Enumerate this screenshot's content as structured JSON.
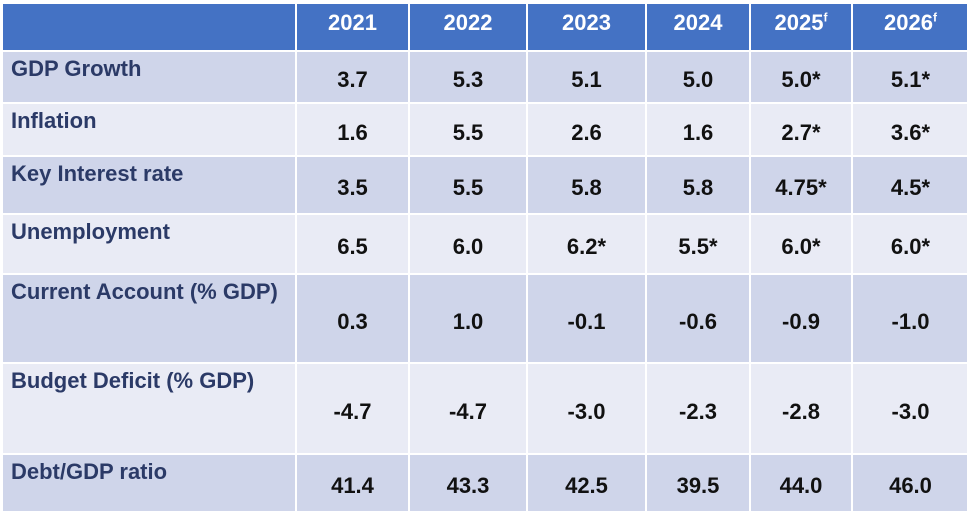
{
  "columns": [
    {
      "year": "2021",
      "sup": ""
    },
    {
      "year": "2022",
      "sup": ""
    },
    {
      "year": "2023",
      "sup": ""
    },
    {
      "year": "2024",
      "sup": ""
    },
    {
      "year": "2025",
      "sup": "f"
    },
    {
      "year": "2026",
      "sup": "f"
    }
  ],
  "rows": [
    {
      "label": "GDP Growth",
      "values": [
        "3.7",
        "5.3",
        "5.1",
        "5.0",
        "5.0*",
        "5.1*"
      ]
    },
    {
      "label": "Inflation",
      "values": [
        "1.6",
        "5.5",
        "2.6",
        "1.6",
        "2.7*",
        "3.6*"
      ]
    },
    {
      "label": "Key Interest rate",
      "values": [
        "3.5",
        "5.5",
        "5.8",
        "5.8",
        "4.75*",
        "4.5*"
      ]
    },
    {
      "label": "Unemployment",
      "values": [
        "6.5",
        "6.0",
        "6.2*",
        "5.5*",
        "6.0*",
        "6.0*"
      ]
    },
    {
      "label": "Current Account (% GDP)",
      "values": [
        "0.3",
        "1.0",
        "-0.1",
        "-0.6",
        "-0.9",
        "-1.0"
      ]
    },
    {
      "label": "Budget Deficit (% GDP)",
      "values": [
        "-4.7",
        "-4.7",
        "-3.0",
        "-2.3",
        "-2.8",
        "-3.0"
      ]
    },
    {
      "label": "Debt/GDP ratio",
      "values": [
        "41.4",
        "43.3",
        "42.5",
        "39.5",
        "44.0",
        "46.0"
      ]
    }
  ],
  "colors": {
    "header": "#4472C4",
    "row_odd": "#CFD5EA",
    "row_even": "#E9EBF5",
    "label_text": "#2B3A67"
  }
}
